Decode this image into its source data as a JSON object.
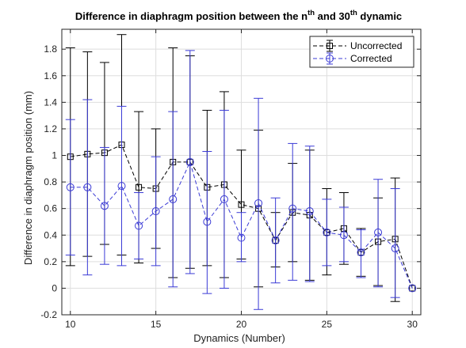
{
  "chart_data": {
    "type": "line",
    "title": {
      "part1": "Difference in diaphragm position between the n",
      "sup1": "th",
      "part2": " and 30",
      "sup2": "th",
      "part3": " dynamic"
    },
    "xlabel": "Dynamics (Number)",
    "ylabel": "Difference in diaphragm position (mm)",
    "xlim": [
      9.5,
      30.5
    ],
    "ylim": [
      -0.2,
      1.95
    ],
    "xticks": [
      10,
      15,
      20,
      25,
      30
    ],
    "yticks": [
      -0.2,
      0,
      0.2,
      0.4,
      0.6,
      0.8,
      1,
      1.2,
      1.4,
      1.6,
      1.8
    ],
    "xtick_labels": [
      "10",
      "15",
      "20",
      "25",
      "30"
    ],
    "ytick_labels": [
      "-0.2",
      "0",
      "0.2",
      "0.4",
      "0.6",
      "0.8",
      "1",
      "1.2",
      "1.4",
      "1.6",
      "1.8"
    ],
    "grid": true,
    "legend_position": "top-right",
    "x": [
      10,
      11,
      12,
      13,
      14,
      15,
      16,
      17,
      18,
      19,
      20,
      21,
      22,
      23,
      24,
      25,
      26,
      27,
      28,
      29,
      30
    ],
    "series": [
      {
        "name": "Uncorrected",
        "color": "#000000",
        "marker": "square",
        "line_style": "dashed",
        "values": [
          0.99,
          1.01,
          1.02,
          1.08,
          0.76,
          0.75,
          0.95,
          0.95,
          0.76,
          0.78,
          0.63,
          0.6,
          0.36,
          0.57,
          0.55,
          0.42,
          0.45,
          0.27,
          0.35,
          0.37,
          0.0
        ],
        "error_low": [
          0.17,
          0.24,
          0.33,
          0.25,
          0.19,
          0.3,
          0.08,
          0.15,
          0.17,
          0.08,
          0.22,
          0.01,
          0.16,
          0.2,
          0.06,
          0.1,
          0.18,
          0.09,
          0.02,
          -0.1,
          0.0
        ],
        "error_high": [
          1.81,
          1.78,
          1.7,
          1.91,
          1.33,
          1.2,
          1.81,
          1.75,
          1.34,
          1.48,
          1.04,
          1.19,
          0.57,
          0.94,
          1.04,
          0.75,
          0.72,
          0.45,
          0.68,
          0.83,
          0.0
        ]
      },
      {
        "name": "Corrected",
        "color": "#3b3bd6",
        "marker": "circle",
        "line_style": "dashed",
        "values": [
          0.76,
          0.76,
          0.62,
          0.77,
          0.47,
          0.58,
          0.67,
          0.95,
          0.5,
          0.67,
          0.38,
          0.64,
          0.36,
          0.6,
          0.58,
          0.42,
          0.4,
          0.27,
          0.42,
          0.3,
          0.0
        ],
        "error_low": [
          0.25,
          0.1,
          0.18,
          0.17,
          0.22,
          0.17,
          0.01,
          0.11,
          -0.04,
          0.0,
          0.2,
          -0.16,
          0.04,
          0.06,
          0.05,
          0.17,
          0.2,
          0.08,
          0.01,
          -0.07,
          0.0
        ],
        "error_high": [
          1.27,
          1.42,
          1.06,
          1.37,
          0.72,
          0.99,
          1.33,
          1.79,
          1.03,
          1.34,
          0.57,
          1.43,
          0.68,
          1.09,
          1.07,
          0.67,
          0.61,
          0.44,
          0.82,
          0.75,
          0.0
        ]
      }
    ]
  }
}
